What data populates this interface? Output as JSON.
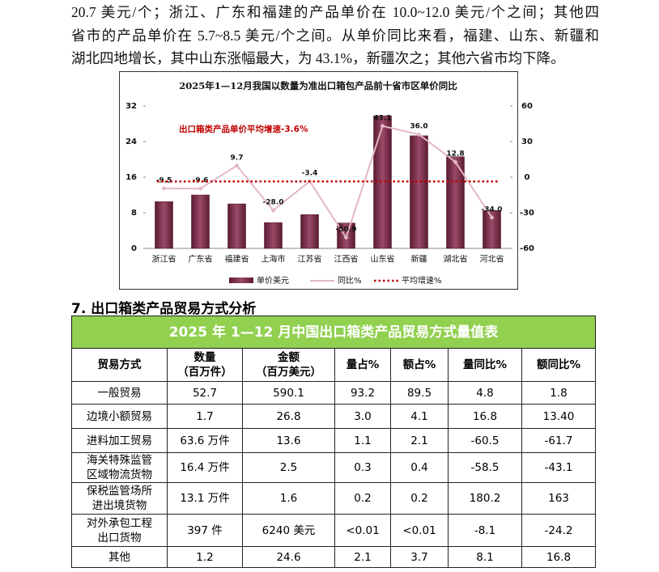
{
  "paragraph": [
    "20.7 美元/个；浙江、广东和福建的产品单价在 10.0~12.0 美元/个之间；其他四",
    "省市的产品单价在 5.7~8.5 美元/个之间。从单价同比来看，福建、山东、新疆和",
    "湖北四地增长，其中山东涨幅最大，为 43.1%，新疆次之；其他六省市均下降。"
  ],
  "chart_data": {
    "type": "bar",
    "title": "2025年1—12月我国以数量为准出口箱包产品前十省市区单价同比",
    "categories": [
      "浙江省",
      "广东省",
      "福建省",
      "上海市",
      "江苏省",
      "江西省",
      "山东省",
      "新疆",
      "湖北省",
      "河北省"
    ],
    "series": [
      {
        "name": "单价美元",
        "color": "#7b2c48",
        "values": [
          10.5,
          12.0,
          10.0,
          5.8,
          7.6,
          5.7,
          29.8,
          25.3,
          20.6,
          8.5
        ]
      },
      {
        "name": "同比%",
        "color": "#e3b7c6",
        "axis": "y2",
        "type": "line",
        "values": [
          -9.5,
          -9.6,
          9.7,
          -28.0,
          -3.4,
          -50.9,
          43.1,
          36.0,
          12.8,
          -34.0
        ],
        "value_labels": [
          "-9.5",
          "-9.6",
          "9.7",
          "-28.0",
          "-3.4",
          "-50.9",
          "43.1",
          "36.0",
          "12.8",
          "-34.0"
        ]
      }
    ],
    "average": {
      "name": "平均增速%",
      "value": -3.6,
      "color": "#c00000"
    },
    "annotation": "出口箱类产品单价平均增速-3.6%",
    "ylim": [
      0,
      32
    ],
    "yticks": [
      0,
      8,
      16,
      24,
      32
    ],
    "y2lim": [
      -60,
      60
    ],
    "y2ticks": [
      -60,
      -30,
      0,
      30,
      60
    ],
    "grid": false,
    "legend": "bottom"
  },
  "heading": "7. 出口箱类产品贸易方式分析",
  "table": {
    "title": "2025 年 1—12 月中国出口箱类产品贸易方式量值表",
    "header": [
      "贸易方式",
      "数量\n（百万件）",
      "金额\n（百万美元）",
      "量占%",
      "额占%",
      "量同比%",
      "额同比%"
    ],
    "rows": [
      [
        "一般贸易",
        "52.7",
        "590.1",
        "93.2",
        "89.5",
        "4.8",
        "1.8"
      ],
      [
        "边境小额贸易",
        "1.7",
        "26.8",
        "3.0",
        "4.1",
        "16.8",
        "13.40"
      ],
      [
        "进料加工贸易",
        "63.6 万件",
        "13.6",
        "1.1",
        "2.1",
        "-60.5",
        "-61.7"
      ],
      [
        "海关特殊监管\n区域物流货物",
        "16.4 万件",
        "2.5",
        "0.3",
        "0.4",
        "-58.5",
        "-43.1"
      ],
      [
        "保税监管场所\n进出境货物",
        "13.1 万件",
        "1.6",
        "0.2",
        "0.2",
        "180.2",
        "163"
      ],
      [
        "对外承包工程\n出口货物",
        "397 件",
        "6240 美元",
        "<0.01",
        "<0.01",
        "-8.1",
        "-24.2"
      ],
      [
        "其他",
        "1.2",
        "24.6",
        "2.1",
        "3.7",
        "8.1",
        "16.8"
      ]
    ]
  }
}
